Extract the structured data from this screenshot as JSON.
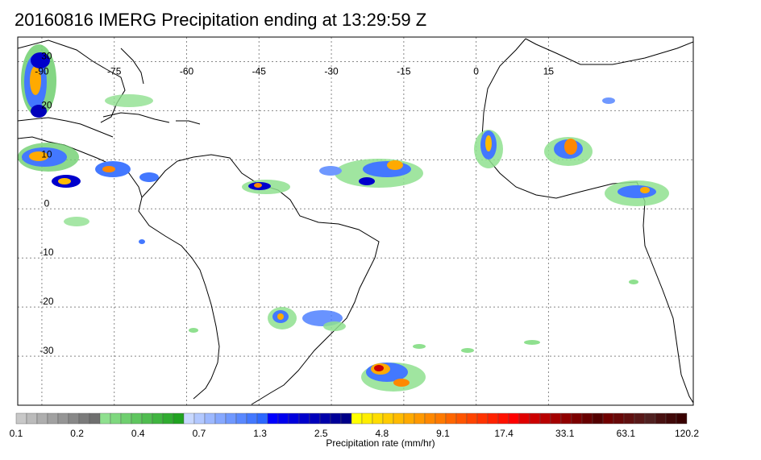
{
  "title": "20160816 IMERG Precipitation ending at 13:29:59 Z",
  "map": {
    "lon_range": [
      -95,
      45
    ],
    "lat_range": [
      -40,
      35
    ],
    "lon_ticks": [
      "-90",
      "-75",
      "-60",
      "-45",
      "-30",
      "-15",
      "0",
      "15"
    ],
    "lat_ticks": [
      "30",
      "20",
      "10",
      "0",
      "-10",
      "-20",
      "-30"
    ],
    "grid": "dotted",
    "background": "#ffffff",
    "coastline_color": "#000000"
  },
  "colorbar": {
    "label": "Precipitation rate (mm/hr)",
    "tick_labels": [
      "0.1",
      "0.2",
      "0.4",
      "0.7",
      "1.3",
      "2.5",
      "4.8",
      "9.1",
      "17.4",
      "33.1",
      "63.1",
      "120.2"
    ],
    "colors": [
      "#c8c8c8",
      "#bbbbbb",
      "#aeaeae",
      "#a1a1a1",
      "#959595",
      "#888888",
      "#7b7b7b",
      "#6f6f6f",
      "#8fe08f",
      "#7fd87f",
      "#6fcf6f",
      "#5fc65f",
      "#50bd50",
      "#40b540",
      "#30ac30",
      "#20a320",
      "#c8d8ff",
      "#b2c8ff",
      "#9cb8ff",
      "#86a8ff",
      "#6f98ff",
      "#5988ff",
      "#4378ff",
      "#2d68ff",
      "#0000ff",
      "#0000ee",
      "#0000dd",
      "#0000cc",
      "#0000bb",
      "#0000aa",
      "#000099",
      "#000088",
      "#ffff00",
      "#ffee00",
      "#ffdd00",
      "#ffcc00",
      "#ffbb00",
      "#ffaa00",
      "#ff9900",
      "#ff8800",
      "#ff7a00",
      "#ff6600",
      "#ff5500",
      "#ff4400",
      "#ff3300",
      "#ff2200",
      "#ff1100",
      "#ff0000",
      "#e00000",
      "#cc0000",
      "#b80000",
      "#a40000",
      "#900000",
      "#7c0000",
      "#680000",
      "#540000",
      "#700000",
      "#680808",
      "#601010",
      "#581818",
      "#502020",
      "#481010",
      "#400808",
      "#380000"
    ]
  }
}
